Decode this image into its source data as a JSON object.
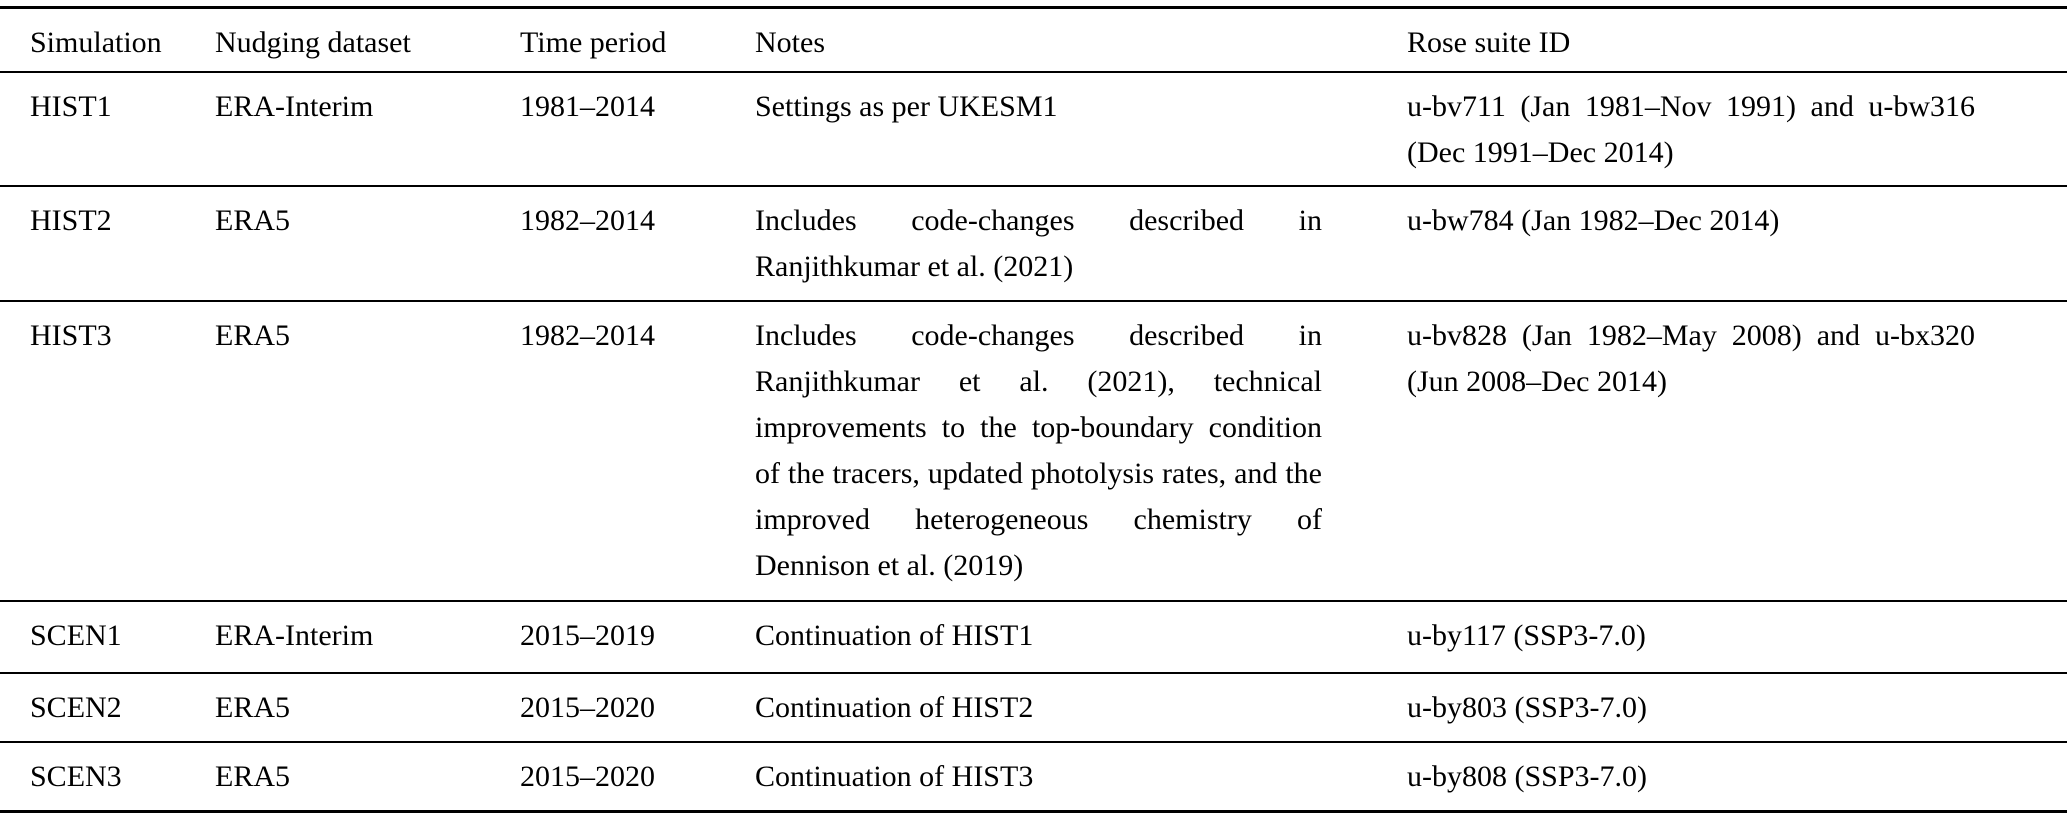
{
  "table": {
    "columns": {
      "simulation": "Simulation",
      "nudging_dataset": "Nudging dataset",
      "time_period": "Time period",
      "notes": "Notes",
      "rose_suite_id": "Rose suite ID"
    },
    "rows": [
      {
        "simulation": "HIST1",
        "nudging_dataset": "ERA-Interim",
        "time_period": "1981–2014",
        "notes": "Settings as per UKESM1",
        "rose_suite_id": "u-bv711 (Jan 1981–Nov 1991) and u-bw316 (Dec 1991–Dec 2014)"
      },
      {
        "simulation": "HIST2",
        "nudging_dataset": "ERA5",
        "time_period": "1982–2014",
        "notes": "Includes code-changes described in Ranjithkumar et al. (2021)",
        "rose_suite_id": "u-bw784 (Jan 1982–Dec 2014)"
      },
      {
        "simulation": "HIST3",
        "nudging_dataset": "ERA5",
        "time_period": "1982–2014",
        "notes": "Includes code-changes described in Ranjithkumar et al. (2021), technical improvements to the top-boundary condition of the tracers, updated photolysis rates, and the improved heterogeneous chemistry of Dennison et al. (2019)",
        "rose_suite_id": "u-bv828 (Jan 1982–May 2008) and u-bx320 (Jun 2008–Dec 2014)"
      },
      {
        "simulation": "SCEN1",
        "nudging_dataset": "ERA-Interim",
        "time_period": "2015–2019",
        "notes": "Continuation of HIST1",
        "rose_suite_id": "u-by117 (SSP3-7.0)"
      },
      {
        "simulation": "SCEN2",
        "nudging_dataset": "ERA5",
        "time_period": "2015–2020",
        "notes": "Continuation of HIST2",
        "rose_suite_id": "u-by803 (SSP3-7.0)"
      },
      {
        "simulation": "SCEN3",
        "nudging_dataset": "ERA5",
        "time_period": "2015–2020",
        "notes": "Continuation of HIST3",
        "rose_suite_id": "u-by808 (SSP3-7.0)"
      }
    ],
    "colors": {
      "text": "#000000",
      "background": "#ffffff",
      "rule": "#000000"
    }
  }
}
